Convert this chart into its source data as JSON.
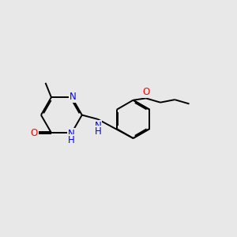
{
  "bg_color": "#e8e8e8",
  "atom_colors": {
    "N": "#0000ff",
    "O": "#ff0000",
    "C": "#000000"
  },
  "bond_color": "#000000",
  "bond_width": 1.4,
  "dbo": 0.055,
  "font_size": 8.5,
  "fig_size": [
    3.0,
    3.0
  ],
  "dpi": 100
}
